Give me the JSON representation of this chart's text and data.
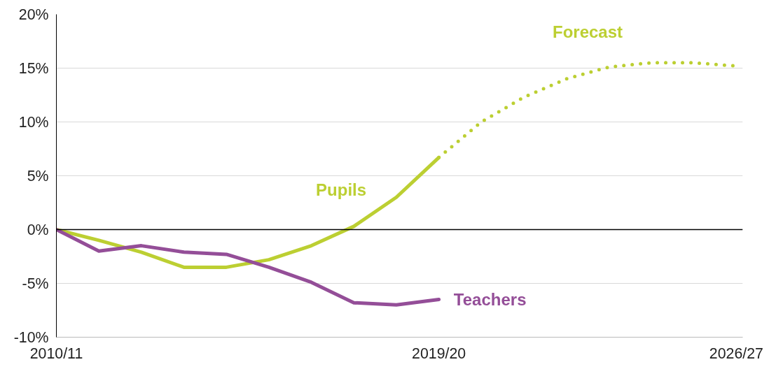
{
  "chart_data": {
    "type": "line",
    "categories": [
      "2010/11",
      null,
      null,
      null,
      null,
      null,
      null,
      null,
      null,
      "2019/20",
      null,
      null,
      null,
      null,
      null,
      null,
      "2026/27"
    ],
    "series": [
      {
        "name": "Pupils",
        "color": "#bccf32",
        "line_style": "solid",
        "values": [
          0,
          -1.0,
          -2.1,
          -3.5,
          -3.5,
          -2.8,
          -1.5,
          0.3,
          3.0,
          6.7,
          null,
          null,
          null,
          null,
          null,
          null,
          null
        ]
      },
      {
        "name": "Forecast",
        "color": "#bccf32",
        "line_style": "dotted",
        "values": [
          null,
          null,
          null,
          null,
          null,
          null,
          null,
          null,
          null,
          6.7,
          10,
          12.3,
          14,
          15.1,
          15.5,
          15.5,
          15.2
        ]
      },
      {
        "name": "Teachers",
        "color": "#944e98",
        "line_style": "solid",
        "values": [
          0,
          -2.0,
          -1.5,
          -2.1,
          -2.3,
          -3.5,
          -4.9,
          -6.8,
          -7.0,
          -6.5,
          null,
          null,
          null,
          null,
          null,
          null,
          null
        ]
      }
    ],
    "ylim": [
      -10,
      20
    ],
    "yticks": [
      {
        "value": -10,
        "label": "-10%"
      },
      {
        "value": -5,
        "label": "-5%"
      },
      {
        "value": 0,
        "label": "0%"
      },
      {
        "value": 5,
        "label": "5%"
      },
      {
        "value": 10,
        "label": "10%"
      },
      {
        "value": 15,
        "label": "15%"
      },
      {
        "value": 20,
        "label": "20%"
      }
    ],
    "grid": "y",
    "ref_lines": [
      {
        "axis": "y",
        "value": 0,
        "color": "#000000"
      }
    ],
    "marker": "none"
  }
}
